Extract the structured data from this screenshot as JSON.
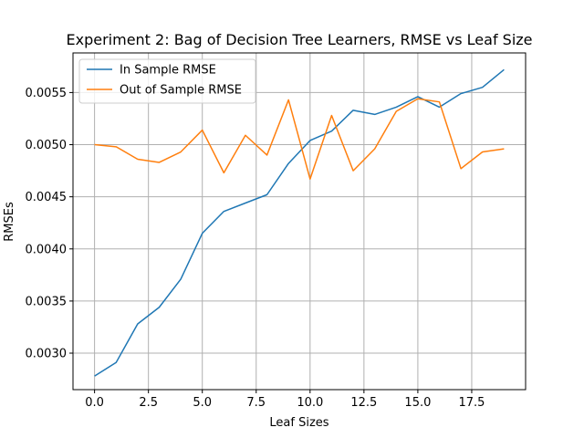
{
  "chart_data": {
    "type": "line",
    "title": "Experiment 2: Bag of Decision Tree Learners, RMSE vs Leaf Size",
    "xlabel": "Leaf Sizes",
    "ylabel": "RMSEs",
    "x": [
      0,
      1,
      2,
      3,
      4,
      5,
      6,
      7,
      8,
      9,
      10,
      11,
      12,
      13,
      14,
      15,
      16,
      17,
      18,
      19
    ],
    "xlim": [
      -1,
      20
    ],
    "ylim": [
      0.00265,
      0.00588
    ],
    "xticks": [
      0.0,
      2.5,
      5.0,
      7.5,
      10.0,
      12.5,
      15.0,
      17.5
    ],
    "xtick_labels": [
      "0.0",
      "2.5",
      "5.0",
      "7.5",
      "10.0",
      "12.5",
      "15.0",
      "17.5"
    ],
    "yticks": [
      0.003,
      0.0035,
      0.004,
      0.0045,
      0.005,
      0.0055
    ],
    "ytick_labels": [
      "0.0030",
      "0.0035",
      "0.0040",
      "0.0045",
      "0.0050",
      "0.0055"
    ],
    "grid": true,
    "legend_position": "top-left",
    "series": [
      {
        "name": "In Sample RMSE",
        "color": "#1f77b4",
        "values": [
          0.00278,
          0.00291,
          0.00328,
          0.00344,
          0.00371,
          0.00415,
          0.00436,
          0.00444,
          0.00452,
          0.00482,
          0.00504,
          0.00513,
          0.00533,
          0.00529,
          0.00536,
          0.00546,
          0.00536,
          0.00549,
          0.00555,
          0.00572
        ]
      },
      {
        "name": "Out of Sample RMSE",
        "color": "#ff7f0e",
        "values": [
          0.005,
          0.00498,
          0.00486,
          0.00483,
          0.00493,
          0.00514,
          0.00473,
          0.00509,
          0.0049,
          0.00543,
          0.00467,
          0.00528,
          0.00475,
          0.00496,
          0.00532,
          0.00544,
          0.00541,
          0.00477,
          0.00493,
          0.00496
        ]
      }
    ]
  }
}
